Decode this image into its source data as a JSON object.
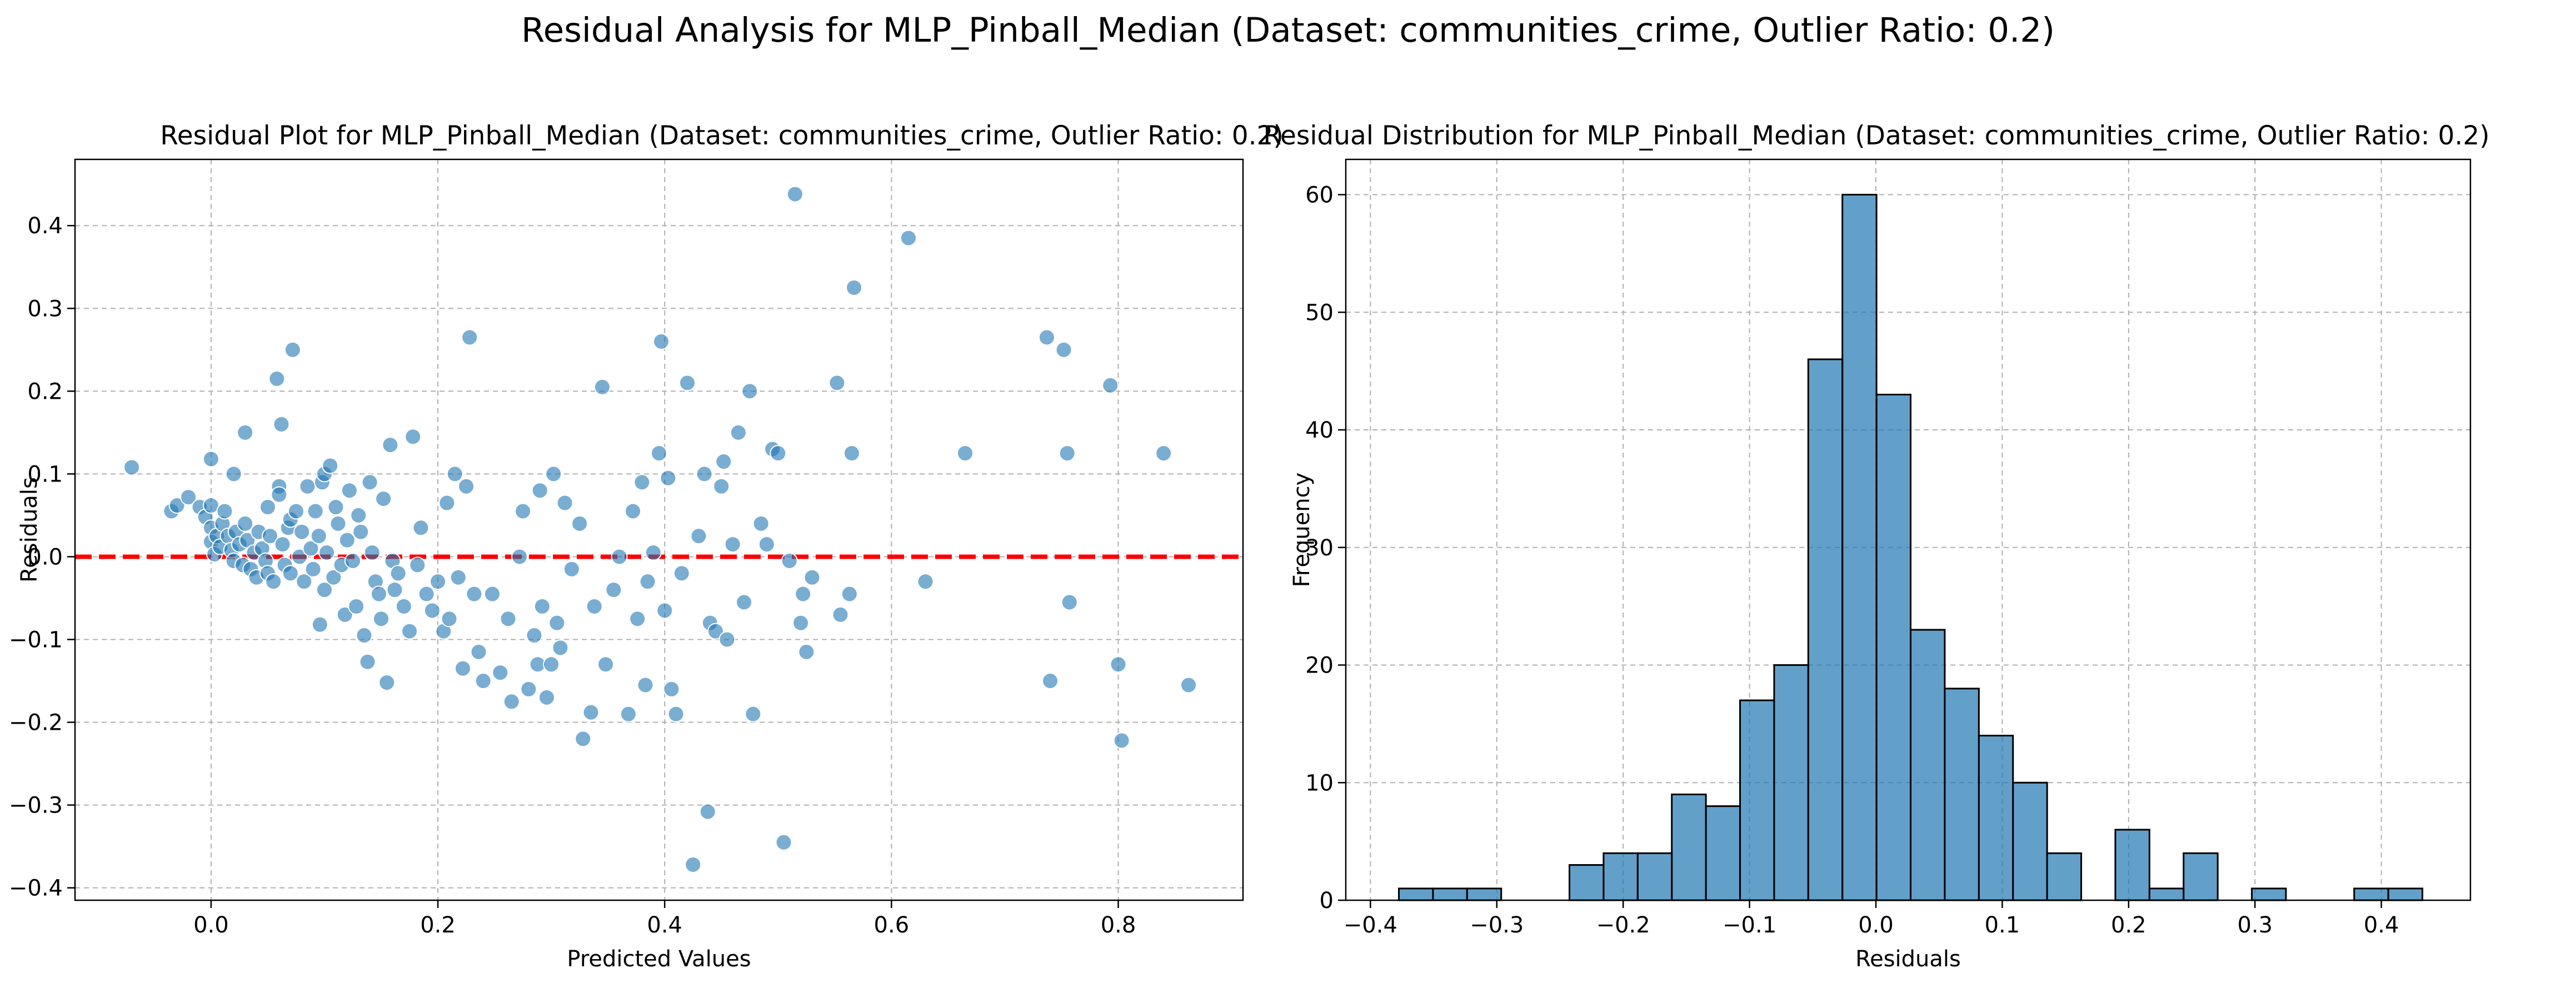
{
  "suptitle": "Residual Analysis for MLP_Pinball_Median (Dataset: communities_crime, Outlier Ratio: 0.2)",
  "colors": {
    "point": "#1f77b4",
    "bar": "#1f77b4",
    "bar_edge": "#000000",
    "zero_line": "#ff0000",
    "grid": "#b0b0b0"
  },
  "chart_data": [
    {
      "type": "scatter",
      "title": "Residual Plot for MLP_Pinball_Median (Dataset: communities_crime, Outlier Ratio: 0.2)",
      "xlabel": "Predicted Values",
      "ylabel": "Residuals",
      "xlim": [
        -0.12,
        0.91
      ],
      "ylim": [
        -0.415,
        0.48
      ],
      "xticks": [
        0.0,
        0.2,
        0.4,
        0.6,
        0.8
      ],
      "xtick_labels": [
        "0.0",
        "0.2",
        "0.4",
        "0.6",
        "0.8"
      ],
      "yticks": [
        -0.4,
        -0.3,
        -0.2,
        -0.1,
        0.0,
        0.1,
        0.2,
        0.3,
        0.4
      ],
      "ytick_labels": [
        "−0.4",
        "−0.3",
        "−0.2",
        "−0.1",
        "0.0",
        "0.1",
        "0.2",
        "0.3",
        "0.4"
      ],
      "grid": true,
      "reference_line": {
        "y": 0.0,
        "style": "dashed"
      },
      "points": [
        [
          -0.07,
          0.108
        ],
        [
          -0.035,
          0.055
        ],
        [
          -0.03,
          0.062
        ],
        [
          -0.02,
          0.072
        ],
        [
          -0.01,
          0.06
        ],
        [
          -0.005,
          0.048
        ],
        [
          0.0,
          0.118
        ],
        [
          0.0,
          0.062
        ],
        [
          0.0,
          0.035
        ],
        [
          0.0,
          0.018
        ],
        [
          0.003,
          0.003
        ],
        [
          0.005,
          0.025
        ],
        [
          0.008,
          0.012
        ],
        [
          0.01,
          0.04
        ],
        [
          0.012,
          0.055
        ],
        [
          0.015,
          0.025
        ],
        [
          0.018,
          0.008
        ],
        [
          0.02,
          0.1
        ],
        [
          0.02,
          -0.005
        ],
        [
          0.022,
          0.03
        ],
        [
          0.025,
          0.015
        ],
        [
          0.028,
          -0.01
        ],
        [
          0.03,
          0.15
        ],
        [
          0.03,
          0.04
        ],
        [
          0.032,
          0.02
        ],
        [
          0.035,
          -0.015
        ],
        [
          0.038,
          0.005
        ],
        [
          0.04,
          -0.025
        ],
        [
          0.042,
          0.03
        ],
        [
          0.045,
          0.01
        ],
        [
          0.048,
          -0.005
        ],
        [
          0.05,
          0.06
        ],
        [
          0.05,
          -0.02
        ],
        [
          0.052,
          0.025
        ],
        [
          0.055,
          -0.03
        ],
        [
          0.058,
          0.215
        ],
        [
          0.06,
          0.085
        ],
        [
          0.06,
          0.075
        ],
        [
          0.062,
          0.16
        ],
        [
          0.063,
          0.015
        ],
        [
          0.065,
          -0.01
        ],
        [
          0.068,
          0.035
        ],
        [
          0.07,
          0.045
        ],
        [
          0.07,
          -0.02
        ],
        [
          0.072,
          0.25
        ],
        [
          0.075,
          0.055
        ],
        [
          0.078,
          0.0
        ],
        [
          0.08,
          0.03
        ],
        [
          0.082,
          -0.03
        ],
        [
          0.085,
          0.085
        ],
        [
          0.088,
          0.01
        ],
        [
          0.09,
          -0.015
        ],
        [
          0.092,
          0.055
        ],
        [
          0.095,
          0.025
        ],
        [
          0.096,
          -0.082
        ],
        [
          0.098,
          0.09
        ],
        [
          0.1,
          0.1
        ],
        [
          0.1,
          -0.04
        ],
        [
          0.102,
          0.005
        ],
        [
          0.105,
          0.11
        ],
        [
          0.108,
          -0.025
        ],
        [
          0.11,
          0.06
        ],
        [
          0.112,
          0.04
        ],
        [
          0.115,
          -0.01
        ],
        [
          0.118,
          -0.07
        ],
        [
          0.12,
          0.02
        ],
        [
          0.122,
          0.08
        ],
        [
          0.125,
          -0.005
        ],
        [
          0.128,
          -0.06
        ],
        [
          0.13,
          0.05
        ],
        [
          0.132,
          0.03
        ],
        [
          0.135,
          -0.095
        ],
        [
          0.138,
          -0.127
        ],
        [
          0.14,
          0.09
        ],
        [
          0.142,
          0.005
        ],
        [
          0.145,
          -0.03
        ],
        [
          0.148,
          -0.045
        ],
        [
          0.15,
          -0.075
        ],
        [
          0.152,
          0.07
        ],
        [
          0.155,
          -0.152
        ],
        [
          0.158,
          0.135
        ],
        [
          0.16,
          -0.005
        ],
        [
          0.162,
          -0.04
        ],
        [
          0.165,
          -0.02
        ],
        [
          0.17,
          -0.06
        ],
        [
          0.175,
          -0.09
        ],
        [
          0.178,
          0.145
        ],
        [
          0.182,
          -0.01
        ],
        [
          0.185,
          0.035
        ],
        [
          0.19,
          -0.045
        ],
        [
          0.195,
          -0.065
        ],
        [
          0.2,
          -0.03
        ],
        [
          0.205,
          -0.09
        ],
        [
          0.208,
          0.065
        ],
        [
          0.21,
          -0.075
        ],
        [
          0.215,
          0.1
        ],
        [
          0.218,
          -0.025
        ],
        [
          0.222,
          -0.135
        ],
        [
          0.225,
          0.085
        ],
        [
          0.228,
          0.265
        ],
        [
          0.232,
          -0.045
        ],
        [
          0.236,
          -0.115
        ],
        [
          0.24,
          -0.15
        ],
        [
          0.248,
          -0.045
        ],
        [
          0.255,
          -0.14
        ],
        [
          0.262,
          -0.075
        ],
        [
          0.265,
          -0.175
        ],
        [
          0.272,
          0.0
        ],
        [
          0.275,
          0.055
        ],
        [
          0.28,
          -0.16
        ],
        [
          0.285,
          -0.095
        ],
        [
          0.288,
          -0.13
        ],
        [
          0.29,
          0.08
        ],
        [
          0.292,
          -0.06
        ],
        [
          0.296,
          -0.17
        ],
        [
          0.3,
          -0.13
        ],
        [
          0.302,
          0.1
        ],
        [
          0.305,
          -0.08
        ],
        [
          0.308,
          -0.11
        ],
        [
          0.312,
          0.065
        ],
        [
          0.318,
          -0.015
        ],
        [
          0.325,
          0.04
        ],
        [
          0.328,
          -0.22
        ],
        [
          0.335,
          -0.188
        ],
        [
          0.338,
          -0.06
        ],
        [
          0.345,
          0.205
        ],
        [
          0.348,
          -0.13
        ],
        [
          0.355,
          -0.04
        ],
        [
          0.36,
          0.0
        ],
        [
          0.368,
          -0.19
        ],
        [
          0.372,
          0.055
        ],
        [
          0.376,
          -0.075
        ],
        [
          0.38,
          0.09
        ],
        [
          0.383,
          -0.155
        ],
        [
          0.385,
          -0.03
        ],
        [
          0.39,
          0.005
        ],
        [
          0.395,
          0.125
        ],
        [
          0.397,
          0.26
        ],
        [
          0.4,
          -0.065
        ],
        [
          0.403,
          0.095
        ],
        [
          0.406,
          -0.16
        ],
        [
          0.41,
          -0.19
        ],
        [
          0.415,
          -0.02
        ],
        [
          0.42,
          0.21
        ],
        [
          0.425,
          -0.372
        ],
        [
          0.43,
          0.025
        ],
        [
          0.435,
          0.1
        ],
        [
          0.438,
          -0.308
        ],
        [
          0.44,
          -0.08
        ],
        [
          0.445,
          -0.09
        ],
        [
          0.45,
          0.085
        ],
        [
          0.452,
          0.115
        ],
        [
          0.455,
          -0.1
        ],
        [
          0.46,
          0.015
        ],
        [
          0.465,
          0.15
        ],
        [
          0.47,
          -0.055
        ],
        [
          0.475,
          0.2
        ],
        [
          0.478,
          -0.19
        ],
        [
          0.485,
          0.04
        ],
        [
          0.49,
          0.015
        ],
        [
          0.495,
          0.13
        ],
        [
          0.5,
          0.125
        ],
        [
          0.505,
          -0.345
        ],
        [
          0.51,
          -0.005
        ],
        [
          0.515,
          0.438
        ],
        [
          0.52,
          -0.08
        ],
        [
          0.522,
          -0.045
        ],
        [
          0.525,
          -0.115
        ],
        [
          0.53,
          -0.025
        ],
        [
          0.552,
          0.21
        ],
        [
          0.555,
          -0.07
        ],
        [
          0.563,
          -0.045
        ],
        [
          0.565,
          0.125
        ],
        [
          0.567,
          0.325
        ],
        [
          0.615,
          0.385
        ],
        [
          0.63,
          -0.03
        ],
        [
          0.665,
          0.125
        ],
        [
          0.737,
          0.265
        ],
        [
          0.74,
          -0.15
        ],
        [
          0.752,
          0.25
        ],
        [
          0.755,
          0.125
        ],
        [
          0.757,
          -0.055
        ],
        [
          0.793,
          0.207
        ],
        [
          0.8,
          -0.13
        ],
        [
          0.803,
          -0.222
        ],
        [
          0.84,
          0.125
        ],
        [
          0.862,
          -0.155
        ]
      ]
    },
    {
      "type": "bar",
      "title": "Residual Distribution for MLP_Pinball_Median (Dataset: communities_crime, Outlier Ratio: 0.2)",
      "xlabel": "Residuals",
      "ylabel": "Frequency",
      "xlim": [
        -0.4195,
        0.4705
      ],
      "ylim": [
        0,
        63
      ],
      "xticks": [
        -0.4,
        -0.3,
        -0.2,
        -0.1,
        0.0,
        0.1,
        0.2,
        0.3,
        0.4
      ],
      "xtick_labels": [
        "−0.4",
        "−0.3",
        "−0.2",
        "−0.1",
        "0.0",
        "0.1",
        "0.2",
        "0.3",
        "0.4"
      ],
      "yticks": [
        0,
        10,
        20,
        30,
        40,
        50,
        60
      ],
      "ytick_labels": [
        "0",
        "10",
        "20",
        "30",
        "40",
        "50",
        "60"
      ],
      "grid": true,
      "bin_start": -0.3775,
      "bin_width": 0.027,
      "values": [
        1,
        1,
        1,
        0,
        0,
        3,
        4,
        4,
        9,
        8,
        17,
        20,
        46,
        60,
        43,
        23,
        18,
        14,
        10,
        4,
        0,
        6,
        1,
        4,
        0,
        1,
        0,
        0,
        1,
        1
      ]
    }
  ]
}
